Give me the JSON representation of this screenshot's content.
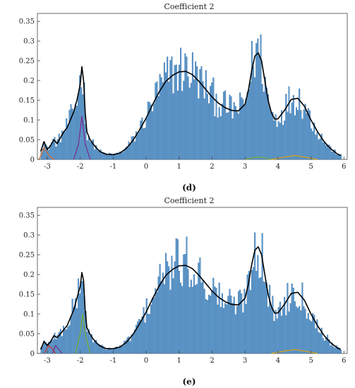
{
  "chart_data": [
    {
      "type": "bar",
      "title": "Coefficient 2",
      "panel_label": "(d)",
      "xlim": [
        -3.3,
        6.1
      ],
      "ylim": [
        0,
        0.37
      ],
      "x_ticks": [
        "-3",
        "-2",
        "-1",
        "0",
        "1",
        "2",
        "3",
        "4",
        "5",
        "6"
      ],
      "y_ticks": [
        "0",
        "0.05",
        "0.1",
        "0.15",
        "0.2",
        "0.25",
        "0.3",
        "0.35"
      ],
      "colors": {
        "bars": "#5b9bd5",
        "bar_edge": "#2d5f8a",
        "fit": "#000000",
        "components": [
          "#e06c2b",
          "#7a2b8c",
          "#77ac30",
          "#d4a017",
          "#c0392b"
        ]
      },
      "fit_curve": {
        "x": [
          -3.2,
          -3.1,
          -3.0,
          -2.9,
          -2.8,
          -2.7,
          -2.6,
          -2.5,
          -2.4,
          -2.3,
          -2.2,
          -2.1,
          -2.0,
          -1.95,
          -1.9,
          -1.85,
          -1.8,
          -1.7,
          -1.6,
          -1.5,
          -1.4,
          -1.3,
          -1.2,
          -1.0,
          -0.8,
          -0.6,
          -0.4,
          -0.2,
          0.0,
          0.2,
          0.4,
          0.6,
          0.8,
          1.0,
          1.2,
          1.4,
          1.6,
          1.8,
          2.0,
          2.2,
          2.4,
          2.6,
          2.8,
          3.0,
          3.1,
          3.2,
          3.3,
          3.4,
          3.5,
          3.6,
          3.7,
          3.8,
          3.9,
          4.0,
          4.2,
          4.4,
          4.6,
          4.8,
          5.0,
          5.2,
          5.4,
          5.6,
          5.8,
          5.9
        ],
        "y": [
          0.02,
          0.045,
          0.025,
          0.035,
          0.05,
          0.04,
          0.055,
          0.07,
          0.08,
          0.1,
          0.12,
          0.15,
          0.19,
          0.235,
          0.2,
          0.12,
          0.07,
          0.05,
          0.038,
          0.028,
          0.02,
          0.016,
          0.013,
          0.012,
          0.016,
          0.028,
          0.048,
          0.075,
          0.105,
          0.14,
          0.172,
          0.198,
          0.213,
          0.222,
          0.223,
          0.215,
          0.198,
          0.178,
          0.158,
          0.142,
          0.131,
          0.124,
          0.123,
          0.14,
          0.175,
          0.225,
          0.262,
          0.27,
          0.25,
          0.2,
          0.15,
          0.118,
          0.102,
          0.103,
          0.125,
          0.152,
          0.155,
          0.135,
          0.1,
          0.07,
          0.045,
          0.027,
          0.014,
          0.01
        ]
      },
      "components": [
        {
          "x": [
            -3.25,
            -3.1,
            -2.95,
            -2.8
          ],
          "y": [
            0.0,
            0.03,
            0.01,
            0.0
          ]
        },
        {
          "x": [
            -2.2,
            -2.05,
            -1.95,
            -1.85,
            -1.7
          ],
          "y": [
            0.0,
            0.04,
            0.11,
            0.04,
            0.0
          ]
        },
        {
          "x": [
            3.0,
            3.2,
            3.4,
            3.6,
            3.8
          ],
          "y": [
            0.0,
            0.004,
            0.006,
            0.004,
            0.0
          ]
        },
        {
          "x": [
            3.8,
            4.2,
            4.5,
            4.8,
            5.2
          ],
          "y": [
            0.0,
            0.006,
            0.01,
            0.006,
            0.0
          ]
        }
      ]
    },
    {
      "type": "bar",
      "title": "Coefficient 2",
      "panel_label": "(e)",
      "xlim": [
        -3.3,
        6.1
      ],
      "ylim": [
        0,
        0.37
      ],
      "x_ticks": [
        "-3",
        "-2",
        "-1",
        "0",
        "1",
        "2",
        "3",
        "4",
        "5",
        "6"
      ],
      "y_ticks": [
        "0",
        "0.05",
        "0.1",
        "0.15",
        "0.2",
        "0.25",
        "0.3",
        "0.35"
      ],
      "colors": {
        "bars": "#5b9bd5",
        "bar_edge": "#2d5f8a",
        "fit": "#000000",
        "components": [
          "#c0392b",
          "#7a2b8c",
          "#77ac30",
          "#d4a017",
          "#e06c2b"
        ]
      },
      "fit_curve": {
        "x": [
          -3.2,
          -3.1,
          -3.0,
          -2.9,
          -2.8,
          -2.7,
          -2.6,
          -2.5,
          -2.4,
          -2.3,
          -2.2,
          -2.1,
          -2.0,
          -1.95,
          -1.9,
          -1.85,
          -1.8,
          -1.7,
          -1.6,
          -1.5,
          -1.4,
          -1.3,
          -1.2,
          -1.0,
          -0.8,
          -0.6,
          -0.4,
          -0.2,
          0.0,
          0.2,
          0.4,
          0.6,
          0.8,
          1.0,
          1.2,
          1.4,
          1.6,
          1.8,
          2.0,
          2.2,
          2.4,
          2.6,
          2.8,
          3.0,
          3.1,
          3.2,
          3.3,
          3.4,
          3.5,
          3.6,
          3.7,
          3.8,
          3.9,
          4.0,
          4.2,
          4.4,
          4.6,
          4.8,
          5.0,
          5.2,
          5.4,
          5.6,
          5.8,
          5.9
        ],
        "y": [
          0.01,
          0.03,
          0.02,
          0.03,
          0.045,
          0.04,
          0.05,
          0.06,
          0.07,
          0.09,
          0.11,
          0.14,
          0.17,
          0.205,
          0.185,
          0.11,
          0.065,
          0.048,
          0.036,
          0.026,
          0.019,
          0.015,
          0.012,
          0.012,
          0.016,
          0.028,
          0.048,
          0.075,
          0.105,
          0.14,
          0.172,
          0.198,
          0.213,
          0.222,
          0.223,
          0.215,
          0.198,
          0.178,
          0.158,
          0.142,
          0.131,
          0.124,
          0.123,
          0.14,
          0.175,
          0.225,
          0.262,
          0.27,
          0.25,
          0.2,
          0.15,
          0.118,
          0.102,
          0.103,
          0.125,
          0.152,
          0.155,
          0.135,
          0.1,
          0.07,
          0.045,
          0.027,
          0.014,
          0.01
        ]
      },
      "components": [
        {
          "x": [
            -3.1,
            -2.95,
            -2.85,
            -2.75
          ],
          "y": [
            0.0,
            0.02,
            0.012,
            0.0
          ]
        },
        {
          "x": [
            -2.85,
            -2.75,
            -2.65,
            -2.55
          ],
          "y": [
            0.0,
            0.02,
            0.01,
            0.0
          ]
        },
        {
          "x": [
            -2.15,
            -2.0,
            -1.93,
            -1.85,
            -1.7
          ],
          "y": [
            0.0,
            0.05,
            0.1,
            0.05,
            0.0
          ]
        },
        {
          "x": [
            3.8,
            4.2,
            4.5,
            4.8,
            5.2
          ],
          "y": [
            0.0,
            0.006,
            0.01,
            0.006,
            0.0
          ]
        }
      ]
    }
  ]
}
